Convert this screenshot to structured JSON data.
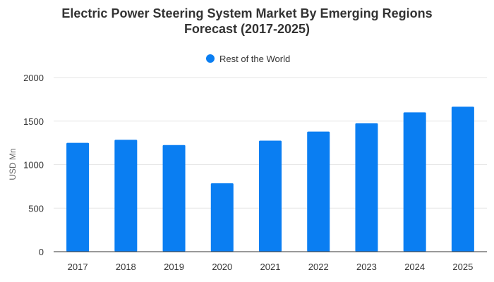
{
  "chart_data": {
    "type": "bar",
    "title_line1": "Electric Power Steering System Market By Emerging Regions",
    "title_line2": "Forecast (2017-2025)",
    "xlabel": "",
    "ylabel": "USD Mn",
    "categories": [
      "2017",
      "2018",
      "2019",
      "2020",
      "2021",
      "2022",
      "2023",
      "2024",
      "2025"
    ],
    "series": [
      {
        "name": "Rest of the World",
        "color": "#0a7ef2",
        "values": [
          1250,
          1285,
          1225,
          785,
          1275,
          1380,
          1475,
          1600,
          1665
        ]
      }
    ],
    "ylim": [
      0,
      2000
    ],
    "yticks": [
      0,
      500,
      1000,
      1500,
      2000
    ],
    "grid": true,
    "legend_position": "top-center"
  }
}
